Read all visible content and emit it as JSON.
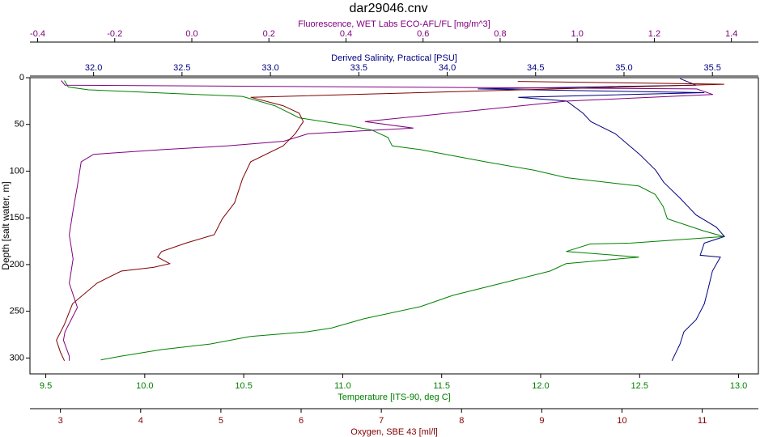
{
  "chart_data": {
    "type": "line",
    "title": "dar29046.cnv",
    "ylabel": "Depth [salt water, m]",
    "ylim": [
      0,
      317
    ],
    "y_inverted": true,
    "yticks": [
      0,
      50,
      100,
      150,
      200,
      250,
      300
    ],
    "x_axes": [
      {
        "label": "Fluorescence, WET Labs ECO-AFL/FL [mg/m^3]",
        "position": "top",
        "xlim": [
          -0.42,
          1.47
        ],
        "xticks": [
          -0.4,
          -0.2,
          {
            "value": 0,
            "label": "0.0"
          },
          0.2,
          0.4,
          0.6,
          0.8,
          {
            "value": 1,
            "label": "1.0"
          },
          1.2,
          1.4
        ]
      },
      {
        "label": "Derived Salinity, Practical [PSU]",
        "position": "top",
        "xlim": [
          31.64,
          35.76
        ],
        "xticks": [
          {
            "value": 32,
            "label": "32.0"
          },
          32.5,
          {
            "value": 33,
            "label": "33.0"
          },
          33.5,
          {
            "value": 34,
            "label": "34.0"
          },
          34.5,
          {
            "value": 35,
            "label": "35.0"
          },
          35.5
        ]
      },
      {
        "label": "Temperature [ITS-90, deg C]",
        "position": "bottom",
        "xlim": [
          9.42,
          13.1
        ],
        "xticks": [
          9.5,
          {
            "value": 10,
            "label": "10.0"
          },
          10.5,
          {
            "value": 11,
            "label": "11.0"
          },
          11.5,
          {
            "value": 12,
            "label": "12.0"
          },
          12.5,
          {
            "value": 13,
            "label": "13.0"
          }
        ]
      },
      {
        "label": "Oxygen, SBE 43 [ml/l]",
        "position": "bottom",
        "xlim": [
          2.62,
          11.7
        ],
        "xticks": [
          3,
          4,
          5,
          6,
          7,
          8,
          9,
          10,
          11
        ]
      }
    ],
    "series": [
      {
        "axis": 2,
        "color": "#008000",
        "depth": [
          3,
          10,
          13,
          20,
          30,
          43,
          51,
          56,
          64,
          73,
          77,
          90,
          99,
          107,
          116,
          125,
          138,
          151,
          164,
          170,
          177,
          178,
          186,
          192,
          199,
          207,
          220,
          233,
          245,
          258,
          268,
          272,
          277,
          285,
          291,
          298,
          302
        ],
        "values": [
          9.594,
          9.614,
          9.717,
          10.493,
          10.657,
          10.78,
          11.025,
          11.147,
          11.229,
          11.25,
          11.393,
          11.72,
          11.966,
          12.129,
          12.497,
          12.579,
          12.619,
          12.64,
          12.824,
          12.926,
          12.456,
          12.25,
          12.129,
          12.497,
          12.129,
          12.047,
          11.802,
          11.556,
          11.393,
          11.107,
          10.943,
          10.82,
          10.534,
          10.33,
          10.085,
          9.88,
          9.778
        ]
      },
      {
        "axis": 1,
        "color": "#000080",
        "depth": [
          1,
          8,
          12,
          16,
          21,
          25,
          38,
          47,
          60,
          82,
          99,
          112,
          129,
          147,
          160,
          170,
          177,
          190,
          192,
          207,
          225,
          242,
          259,
          272,
          285,
          303
        ],
        "values": [
          35.317,
          35.408,
          34.173,
          35.454,
          34.402,
          34.676,
          34.768,
          34.813,
          34.951,
          35.088,
          35.179,
          35.225,
          35.317,
          35.408,
          35.522,
          35.568,
          35.454,
          35.431,
          35.545,
          35.5,
          35.477,
          35.454,
          35.408,
          35.339,
          35.317,
          35.271
        ]
      },
      {
        "axis": 0,
        "color": "#800080",
        "depth": [
          3,
          8,
          12,
          18,
          25,
          47,
          54,
          60,
          68,
          73,
          77,
          82,
          90,
          116,
          142,
          168,
          194,
          220,
          246,
          272,
          281,
          298,
          303
        ],
        "values": [
          -0.339,
          -0.329,
          1.31,
          1.352,
          0.974,
          0.449,
          0.575,
          0.302,
          0.239,
          0.092,
          -0.076,
          -0.255,
          -0.287,
          -0.297,
          -0.308,
          -0.318,
          -0.308,
          -0.318,
          -0.297,
          -0.329,
          -0.333,
          -0.318,
          -0.318
        ]
      },
      {
        "axis": 3,
        "color": "#800000",
        "depth": [
          4,
          7,
          21,
          30,
          38,
          47,
          60,
          73,
          90,
          108,
          134,
          151,
          168,
          177,
          186,
          192,
          199,
          203,
          207,
          220,
          242,
          264,
          281,
          294,
          303
        ],
        "values": [
          8.701,
          11.274,
          5.371,
          5.775,
          5.977,
          6.027,
          5.926,
          5.775,
          5.371,
          5.27,
          5.17,
          5.018,
          4.917,
          4.564,
          4.261,
          4.211,
          4.362,
          4.16,
          3.757,
          3.454,
          3.151,
          3.05,
          2.95,
          3,
          3.05
        ]
      }
    ]
  }
}
